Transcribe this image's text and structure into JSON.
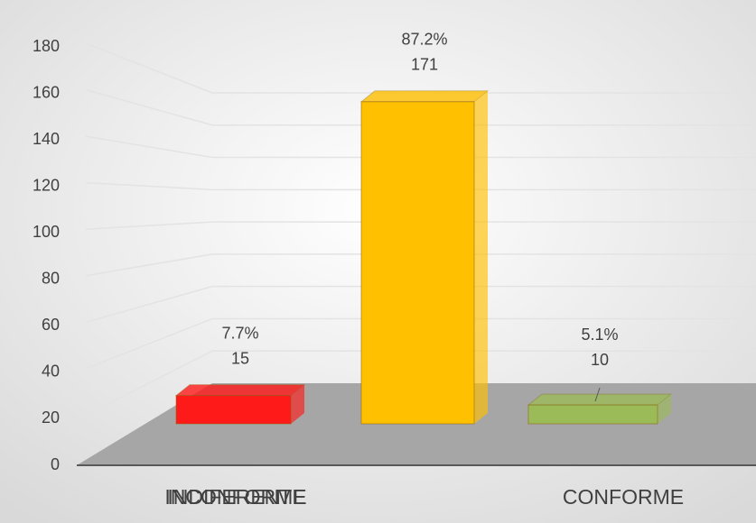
{
  "chart_data": {
    "type": "bar3d",
    "categories": [
      "INCONFORME",
      "INDIFERENTE",
      "CONFORME"
    ],
    "values": [
      15,
      171,
      10
    ],
    "percentages": [
      7.7,
      87.2,
      5.1
    ],
    "percentage_labels": [
      "7.7%",
      "87.2%",
      "5.1%"
    ],
    "colors": [
      "#ff1a1a",
      "#ffc000",
      "#9bbb59"
    ],
    "ylim": [
      0,
      180
    ],
    "yticks": [
      0,
      20,
      40,
      60,
      80,
      100,
      120,
      140,
      160,
      180
    ],
    "grid": true
  }
}
